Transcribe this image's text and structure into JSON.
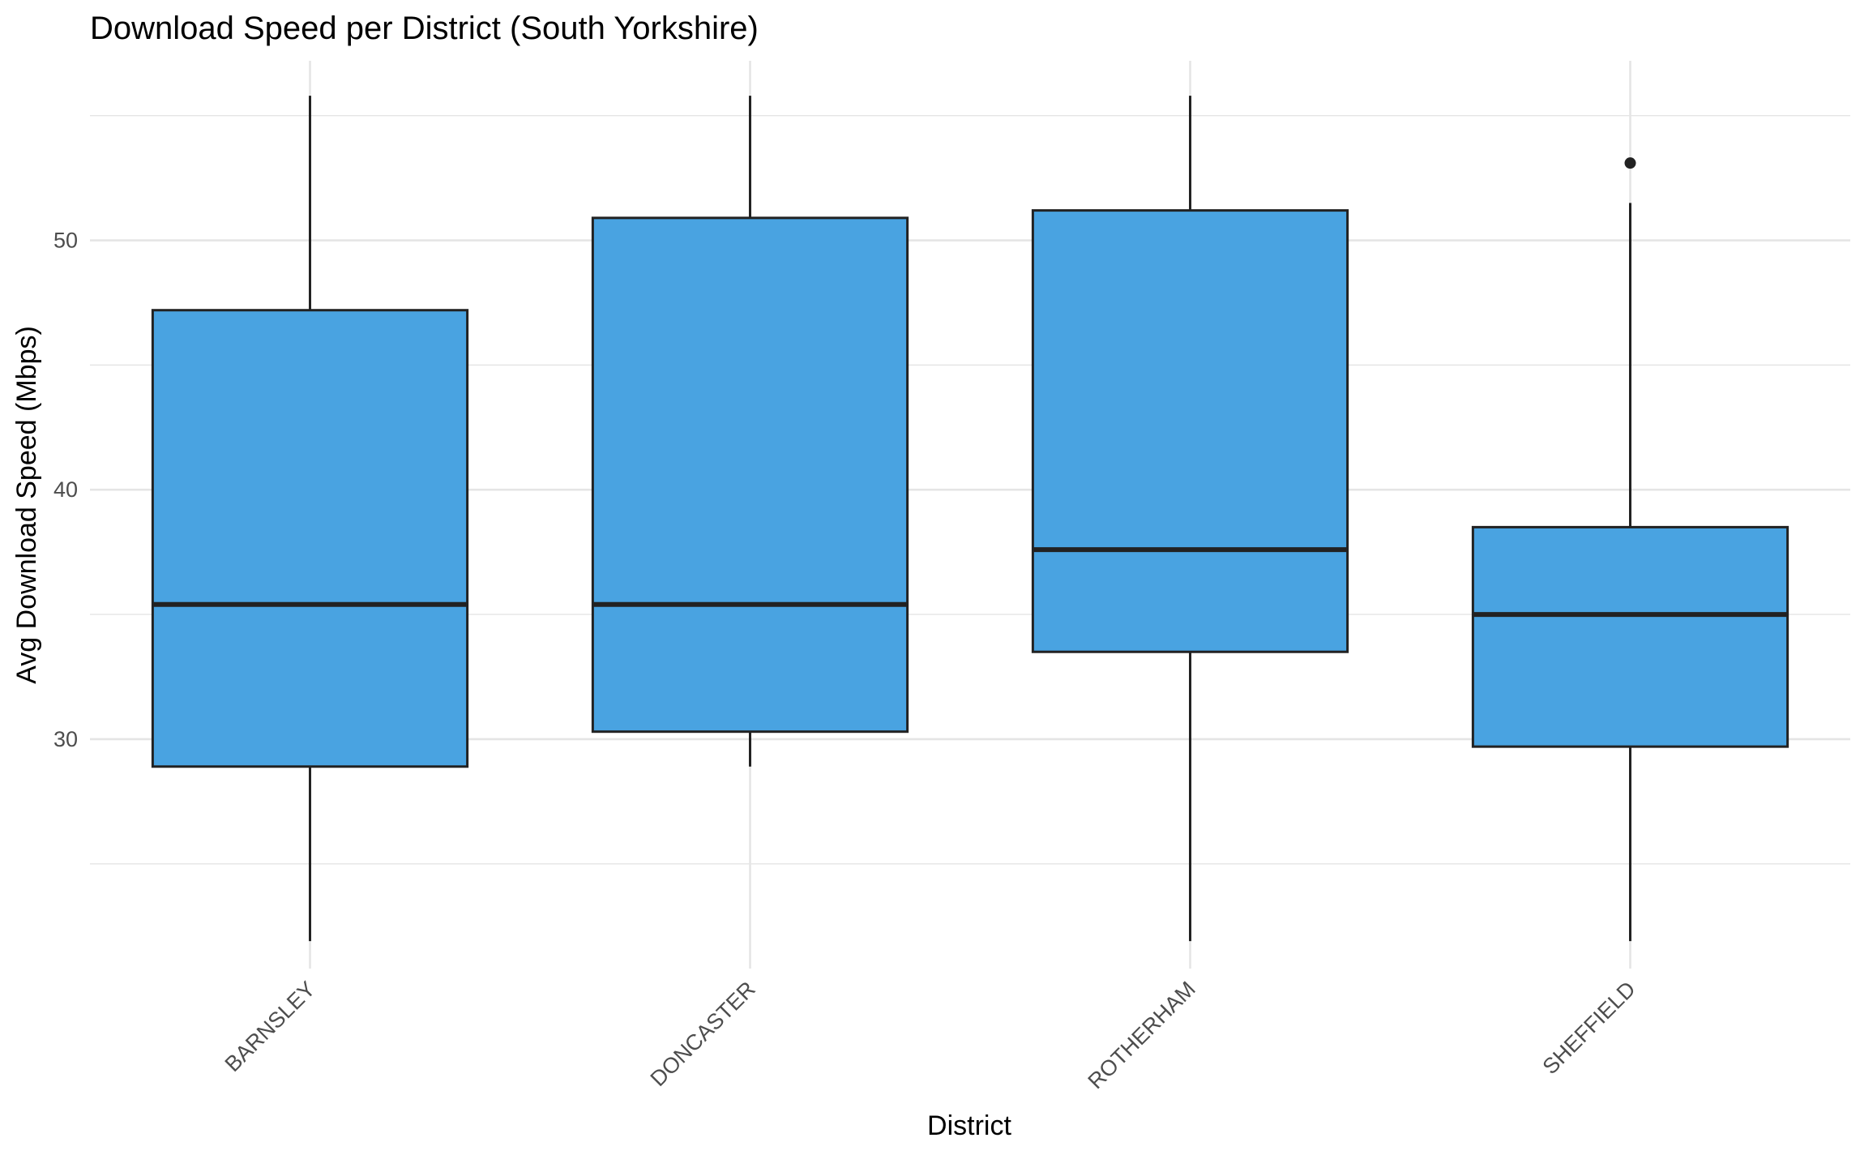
{
  "chart_data": {
    "type": "boxplot",
    "title": "Download Speed per District (South Yorkshire)",
    "xlabel": "District",
    "ylabel": "Avg Download Speed (Mbps)",
    "ylim": [
      20.8,
      57.2
    ],
    "yticks": [
      30,
      40,
      50
    ],
    "grid": true,
    "legend": "none",
    "colors": {
      "box_fill": "#49A3E1",
      "box_stroke": "#222222",
      "grid": "#e5e5e5"
    },
    "categories": [
      "BARNSLEY",
      "DONCASTER",
      "ROTHERHAM",
      "SHEFFIELD"
    ],
    "boxes": [
      {
        "category": "BARNSLEY",
        "min": 21.9,
        "q1": 28.9,
        "median": 35.4,
        "q3": 47.2,
        "max": 55.8,
        "outliers": []
      },
      {
        "category": "DONCASTER",
        "min": 28.9,
        "q1": 30.3,
        "median": 35.4,
        "q3": 50.9,
        "max": 55.8,
        "outliers": []
      },
      {
        "category": "ROTHERHAM",
        "min": 21.9,
        "q1": 33.5,
        "median": 37.6,
        "q3": 51.2,
        "max": 55.8,
        "outliers": []
      },
      {
        "category": "SHEFFIELD",
        "min": 21.9,
        "q1": 29.7,
        "median": 35.0,
        "q3": 38.5,
        "max": 51.5,
        "outliers": [
          53.1
        ]
      }
    ]
  }
}
